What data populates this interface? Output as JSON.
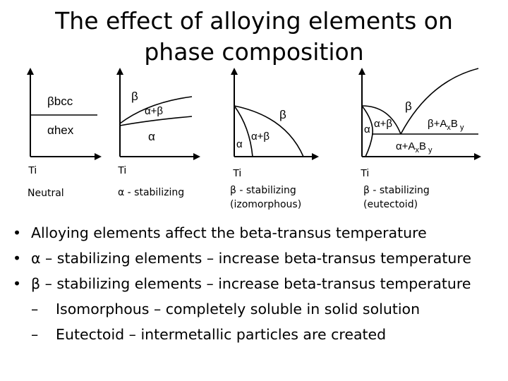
{
  "title": {
    "line1": "The effect of alloying elements on",
    "line2": "phase composition"
  },
  "diagrams": [
    {
      "axis_label": "Ti",
      "region_labels": {
        "upper": "βbcc",
        "lower": "αhex"
      },
      "caption": [
        "Neutral"
      ]
    },
    {
      "axis_label": "Ti",
      "region_labels": {
        "upper": "β",
        "middle": "α+β",
        "lower": "α"
      },
      "caption": [
        "α - stabilizing"
      ]
    },
    {
      "axis_label": "Ti",
      "region_labels": {
        "upper": "β",
        "middle": "α+β",
        "lower": "α"
      },
      "caption": [
        "β  - stabilizing",
        "(izomorphous)"
      ]
    },
    {
      "axis_label": "Ti",
      "region_labels": {
        "upper": "β",
        "left": "α",
        "middle": "α+β",
        "right": "β+AxBy",
        "lower": "α+AxBy"
      },
      "caption": [
        "β  - stabilizing",
        "(eutectoid)"
      ]
    }
  ],
  "bullets": [
    {
      "mark": "•",
      "text": "Alloying elements affect the beta-transus temperature"
    },
    {
      "mark": "•",
      "text": "α – stabilizing elements – increase beta-transus temperature"
    },
    {
      "mark": "•",
      "text": "β – stabilizing elements – increase beta-transus temperature"
    }
  ],
  "sub_bullets": [
    {
      "mark": "–",
      "text": "Isomorphous – completely soluble in solid solution"
    },
    {
      "mark": "–",
      "text": "Eutectoid – intermetallic particles are created"
    }
  ]
}
